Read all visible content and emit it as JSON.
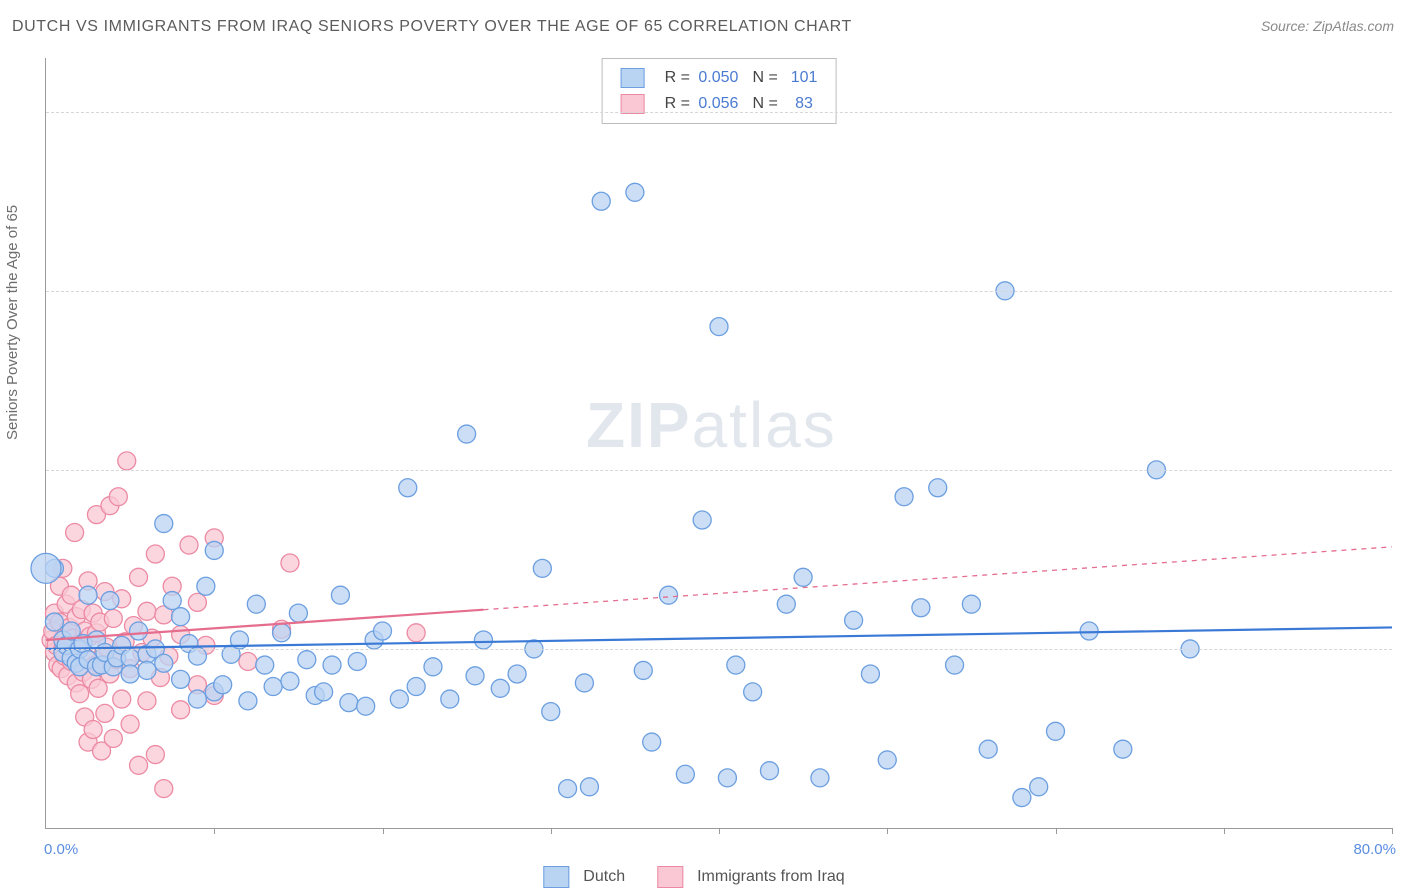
{
  "title": "DUTCH VS IMMIGRANTS FROM IRAQ SENIORS POVERTY OVER THE AGE OF 65 CORRELATION CHART",
  "source": "Source: ZipAtlas.com",
  "yaxis_label": "Seniors Poverty Over the Age of 65",
  "watermark_prefix": "ZIP",
  "watermark_suffix": "atlas",
  "chart": {
    "type": "scatter-regression",
    "xlim": [
      0,
      80
    ],
    "ylim": [
      0,
      43
    ],
    "x_ticks_minor": [
      10,
      20,
      30,
      40,
      50,
      60,
      70,
      80
    ],
    "x_labels": [
      0,
      80
    ],
    "y_lines": [
      10,
      20,
      30,
      40
    ],
    "x_unit": "%",
    "y_unit": "%",
    "background_color": "#ffffff",
    "grid_color": "#d6d6d6",
    "axis_color": "#9a9a9a",
    "tick_label_color": "#5a8de0",
    "marker_radius": 9,
    "marker_stroke_width": 1.3,
    "reg_line_width": 2.2,
    "series": [
      {
        "key": "dutch",
        "label": "Dutch",
        "fill": "#b9d3f3",
        "stroke": "#6c9fe0",
        "line_color": "#3a79d6",
        "R": "0.050",
        "N": "101",
        "reg": {
          "x1": 0,
          "y1": 10.0,
          "x2": 80,
          "y2": 11.2,
          "solid_to_x": 80
        },
        "points": [
          [
            0.5,
            14.5
          ],
          [
            0.5,
            11.5
          ],
          [
            1,
            9.8
          ],
          [
            1,
            10.5
          ],
          [
            1.2,
            10.2
          ],
          [
            1.5,
            9.5
          ],
          [
            1.5,
            11
          ],
          [
            1.8,
            9.2
          ],
          [
            2,
            9
          ],
          [
            2,
            10
          ],
          [
            2.2,
            10.3
          ],
          [
            2.5,
            9.4
          ],
          [
            2.5,
            13
          ],
          [
            3,
            9
          ],
          [
            3,
            10.5
          ],
          [
            3.3,
            9.1
          ],
          [
            3.5,
            9.8
          ],
          [
            3.8,
            12.7
          ],
          [
            4,
            9
          ],
          [
            4.2,
            9.5
          ],
          [
            4.5,
            10.2
          ],
          [
            5,
            9.5
          ],
          [
            5,
            8.6
          ],
          [
            5.5,
            11
          ],
          [
            6,
            9.7
          ],
          [
            6,
            8.8
          ],
          [
            6.5,
            10
          ],
          [
            7,
            17
          ],
          [
            7,
            9.2
          ],
          [
            7.5,
            12.7
          ],
          [
            8,
            11.8
          ],
          [
            8,
            8.3
          ],
          [
            8.5,
            10.3
          ],
          [
            9,
            9.6
          ],
          [
            9,
            7.2
          ],
          [
            9.5,
            13.5
          ],
          [
            10,
            15.5
          ],
          [
            10,
            7.6
          ],
          [
            10.5,
            8
          ],
          [
            11,
            9.7
          ],
          [
            11.5,
            10.5
          ],
          [
            12,
            7.1
          ],
          [
            12.5,
            12.5
          ],
          [
            13,
            9.1
          ],
          [
            13.5,
            7.9
          ],
          [
            14,
            10.9
          ],
          [
            14.5,
            8.2
          ],
          [
            15,
            12
          ],
          [
            15.5,
            9.4
          ],
          [
            16,
            7.4
          ],
          [
            16.5,
            7.6
          ],
          [
            17,
            9.1
          ],
          [
            17.5,
            13
          ],
          [
            18,
            7
          ],
          [
            18.5,
            9.3
          ],
          [
            19,
            6.8
          ],
          [
            19.5,
            10.5
          ],
          [
            20,
            11
          ],
          [
            21,
            7.2
          ],
          [
            21.5,
            19
          ],
          [
            22,
            7.9
          ],
          [
            23,
            9
          ],
          [
            24,
            7.2
          ],
          [
            25,
            22
          ],
          [
            25.5,
            8.5
          ],
          [
            26,
            10.5
          ],
          [
            27,
            7.8
          ],
          [
            28,
            8.6
          ],
          [
            29,
            10
          ],
          [
            29.5,
            14.5
          ],
          [
            30,
            6.5
          ],
          [
            31,
            2.2
          ],
          [
            32,
            8.1
          ],
          [
            32.3,
            2.3
          ],
          [
            33,
            35
          ],
          [
            35,
            35.5
          ],
          [
            35.5,
            8.8
          ],
          [
            36,
            4.8
          ],
          [
            37,
            13
          ],
          [
            38,
            3
          ],
          [
            39,
            17.2
          ],
          [
            40,
            28
          ],
          [
            40.5,
            2.8
          ],
          [
            41,
            9.1
          ],
          [
            42,
            7.6
          ],
          [
            43,
            3.2
          ],
          [
            44,
            12.5
          ],
          [
            45,
            14
          ],
          [
            46,
            2.8
          ],
          [
            48,
            11.6
          ],
          [
            49,
            8.6
          ],
          [
            50,
            3.8
          ],
          [
            51,
            18.5
          ],
          [
            52,
            12.3
          ],
          [
            53,
            19
          ],
          [
            54,
            9.1
          ],
          [
            55,
            12.5
          ],
          [
            56,
            4.4
          ],
          [
            57,
            30
          ],
          [
            58,
            1.7
          ],
          [
            59,
            2.3
          ],
          [
            60,
            5.4
          ],
          [
            62,
            11
          ],
          [
            64,
            4.4
          ],
          [
            66,
            20
          ],
          [
            68,
            10
          ]
        ]
      },
      {
        "key": "iraq",
        "label": "Immigrants from Iraq",
        "fill": "#f9c8d4",
        "stroke": "#ec8aa3",
        "line_color": "#e56d8e",
        "R": "0.056",
        "N": "83",
        "reg": {
          "x1": 0,
          "y1": 10.5,
          "x2": 80,
          "y2": 15.7,
          "solid_to_x": 26
        },
        "points": [
          [
            0.3,
            10.5
          ],
          [
            0.4,
            11
          ],
          [
            0.5,
            9.8
          ],
          [
            0.5,
            12
          ],
          [
            0.6,
            10.2
          ],
          [
            0.7,
            9.1
          ],
          [
            0.8,
            11.5
          ],
          [
            0.8,
            13.5
          ],
          [
            0.9,
            8.9
          ],
          [
            1,
            10
          ],
          [
            1,
            14.5
          ],
          [
            1.1,
            9.6
          ],
          [
            1.2,
            10.8
          ],
          [
            1.2,
            12.5
          ],
          [
            1.3,
            8.5
          ],
          [
            1.4,
            11.2
          ],
          [
            1.5,
            9.3
          ],
          [
            1.5,
            13
          ],
          [
            1.6,
            10.6
          ],
          [
            1.7,
            16.5
          ],
          [
            1.8,
            8.1
          ],
          [
            1.8,
            11.8
          ],
          [
            1.9,
            9.9
          ],
          [
            2,
            10.3
          ],
          [
            2,
            7.5
          ],
          [
            2.1,
            12.2
          ],
          [
            2.2,
            8.7
          ],
          [
            2.3,
            11
          ],
          [
            2.3,
            6.2
          ],
          [
            2.4,
            9.5
          ],
          [
            2.5,
            13.8
          ],
          [
            2.5,
            4.8
          ],
          [
            2.6,
            10.7
          ],
          [
            2.7,
            8.3
          ],
          [
            2.8,
            12
          ],
          [
            2.8,
            5.5
          ],
          [
            2.9,
            9.1
          ],
          [
            3,
            10.9
          ],
          [
            3,
            17.5
          ],
          [
            3.1,
            7.8
          ],
          [
            3.2,
            11.5
          ],
          [
            3.3,
            4.3
          ],
          [
            3.4,
            9.7
          ],
          [
            3.5,
            13.2
          ],
          [
            3.5,
            6.4
          ],
          [
            3.6,
            10.1
          ],
          [
            3.8,
            8.6
          ],
          [
            3.8,
            18
          ],
          [
            4,
            11.7
          ],
          [
            4,
            5
          ],
          [
            4.2,
            9.4
          ],
          [
            4.3,
            18.5
          ],
          [
            4.5,
            7.2
          ],
          [
            4.5,
            12.8
          ],
          [
            4.7,
            10.4
          ],
          [
            4.8,
            20.5
          ],
          [
            5,
            8.9
          ],
          [
            5,
            5.8
          ],
          [
            5.2,
            11.3
          ],
          [
            5.5,
            3.5
          ],
          [
            5.5,
            14
          ],
          [
            5.7,
            9.8
          ],
          [
            6,
            7.1
          ],
          [
            6,
            12.1
          ],
          [
            6.3,
            10.6
          ],
          [
            6.5,
            4.1
          ],
          [
            6.5,
            15.3
          ],
          [
            6.8,
            8.4
          ],
          [
            7,
            11.9
          ],
          [
            7,
            2.2
          ],
          [
            7.3,
            9.6
          ],
          [
            7.5,
            13.5
          ],
          [
            8,
            6.6
          ],
          [
            8,
            10.8
          ],
          [
            8.5,
            15.8
          ],
          [
            9,
            8
          ],
          [
            9,
            12.6
          ],
          [
            9.5,
            10.2
          ],
          [
            10,
            7.4
          ],
          [
            10,
            16.2
          ],
          [
            12,
            9.3
          ],
          [
            14,
            11.1
          ],
          [
            14.5,
            14.8
          ],
          [
            22,
            10.9
          ]
        ]
      }
    ]
  }
}
